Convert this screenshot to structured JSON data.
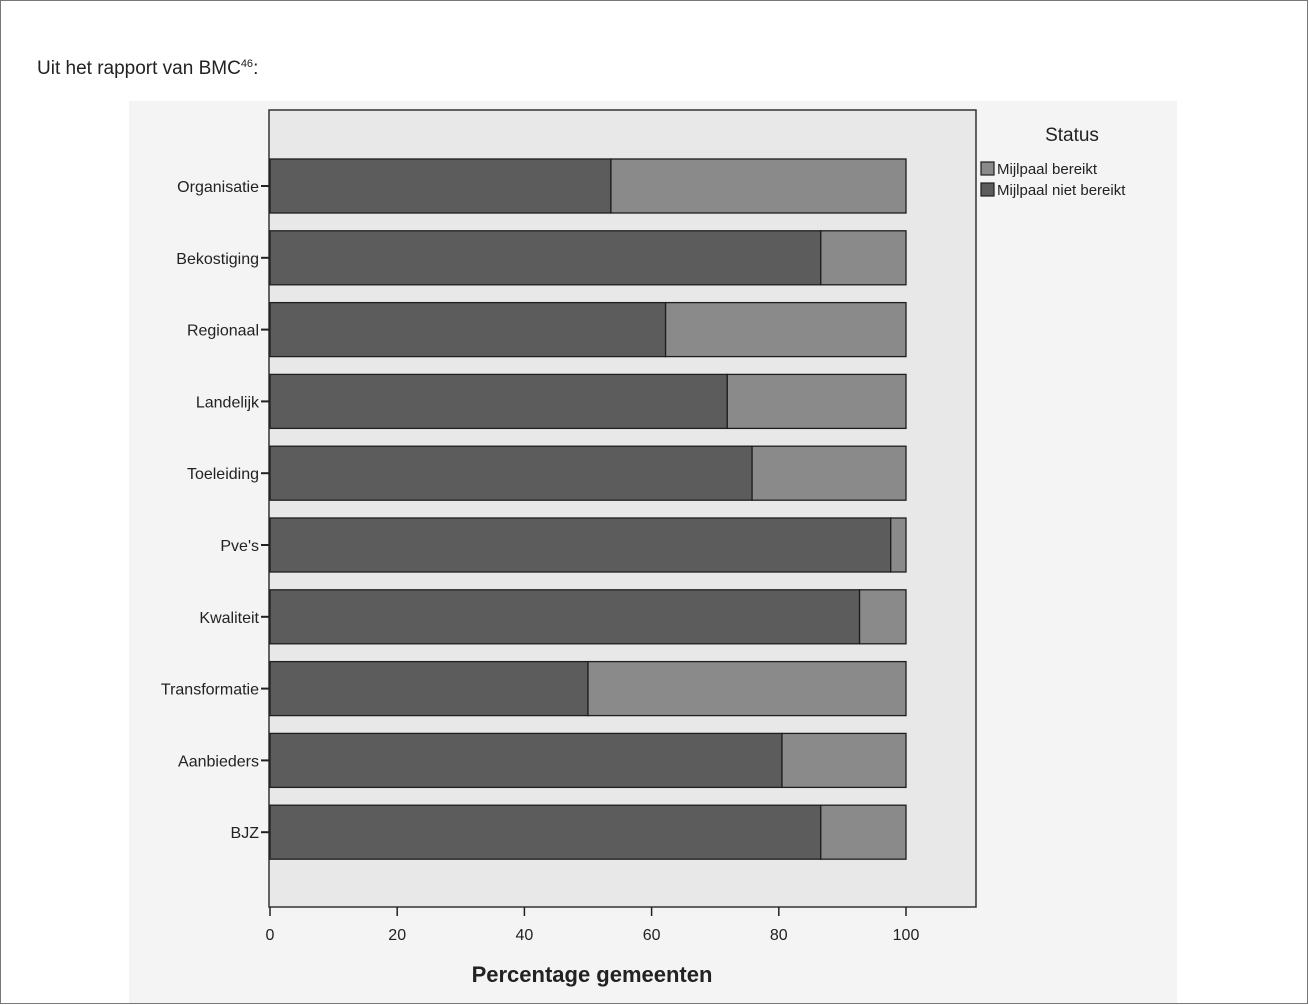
{
  "intro": {
    "text": "Uit het rapport van BMC",
    "footnote_ref": "46",
    "suffix": ":"
  },
  "chart_data": {
    "type": "bar",
    "orientation": "horizontal",
    "stacked": true,
    "categories": [
      "Organisatie",
      "Bekostiging",
      "Regionaal",
      "Landelijk",
      "Toeleiding",
      "Pve's",
      "Kwaliteit",
      "Transformatie",
      "Aanbieders",
      "BJZ"
    ],
    "series": [
      {
        "name": "Mijlpaal niet bereikt",
        "color": "#5c5c5c",
        "values": [
          53.6,
          86.6,
          62.2,
          71.9,
          75.8,
          97.6,
          92.7,
          50.0,
          80.5,
          86.6
        ]
      },
      {
        "name": "Mijlpaal bereikt",
        "color": "#8a8a8a",
        "values": [
          46.4,
          13.4,
          37.8,
          28.1,
          24.2,
          2.4,
          7.3,
          50.0,
          19.5,
          13.4
        ]
      }
    ],
    "legend": {
      "title": "Status",
      "position": "right",
      "entries": [
        "Mijlpaal bereikt",
        "Mijlpaal niet bereikt"
      ]
    },
    "xlabel": "Percentage gemeenten",
    "ylabel": "",
    "xlim": [
      0,
      110
    ],
    "xticks": [
      0,
      20,
      40,
      60,
      80,
      100
    ],
    "grid": false,
    "plot_background": "#e8e8e8",
    "outer_background": "#f4f4f4"
  }
}
